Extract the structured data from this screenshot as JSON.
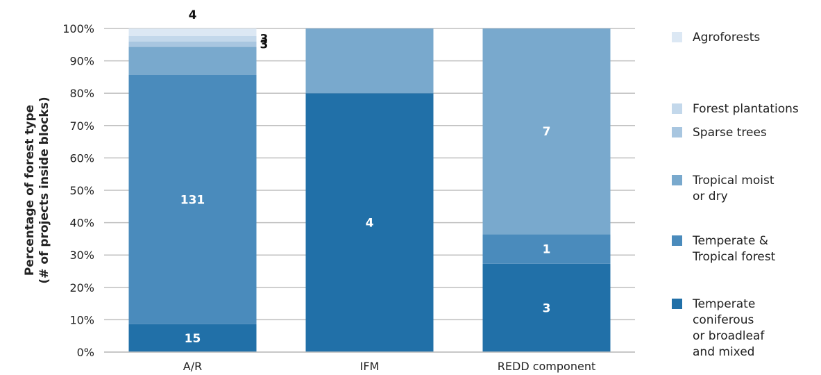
{
  "chart_data": {
    "type": "bar",
    "stacked": true,
    "percent_stacked": true,
    "ylabel": "Percentage of forest type\n(# of projects inside blocks)",
    "xlabel": "",
    "ylim": [
      0,
      100
    ],
    "grid": true,
    "legend_position": "right",
    "y_ticks": [
      "0%",
      "10%",
      "20%",
      "30%",
      "40%",
      "50%",
      "60%",
      "70%",
      "80%",
      "90%",
      "100%"
    ],
    "categories": [
      "A/R",
      "IFM",
      "REDD component"
    ],
    "series": [
      {
        "name": "Temperate\nconiferous\nor  broadleaf\nand mixed",
        "color": "#2170a8",
        "values": [
          8.6,
          80,
          27.3
        ],
        "labels": [
          "15",
          "4",
          "3"
        ]
      },
      {
        "name": "Temperate &\nTropical forest",
        "color": "#4a8bbc",
        "values": [
          77.1,
          0,
          9.1
        ],
        "labels": [
          "131",
          "",
          "1"
        ]
      },
      {
        "name": "Tropical moist\nor dry",
        "color": "#79a9cd",
        "values": [
          8.6,
          20,
          63.6
        ],
        "labels": [
          "",
          "",
          "7"
        ]
      },
      {
        "name": "Sparse trees",
        "color": "#a8c6e0",
        "values": [
          1.7,
          0,
          0
        ],
        "labels": [
          "3",
          "",
          ""
        ]
      },
      {
        "name": "Forest plantations",
        "color": "#c3d8eb",
        "values": [
          1.7,
          0,
          0
        ],
        "labels": [
          "3",
          "",
          ""
        ]
      },
      {
        "name": "Agroforests",
        "color": "#dce8f4",
        "values": [
          2.3,
          0,
          0
        ],
        "labels": [
          "4",
          "",
          ""
        ]
      }
    ]
  }
}
